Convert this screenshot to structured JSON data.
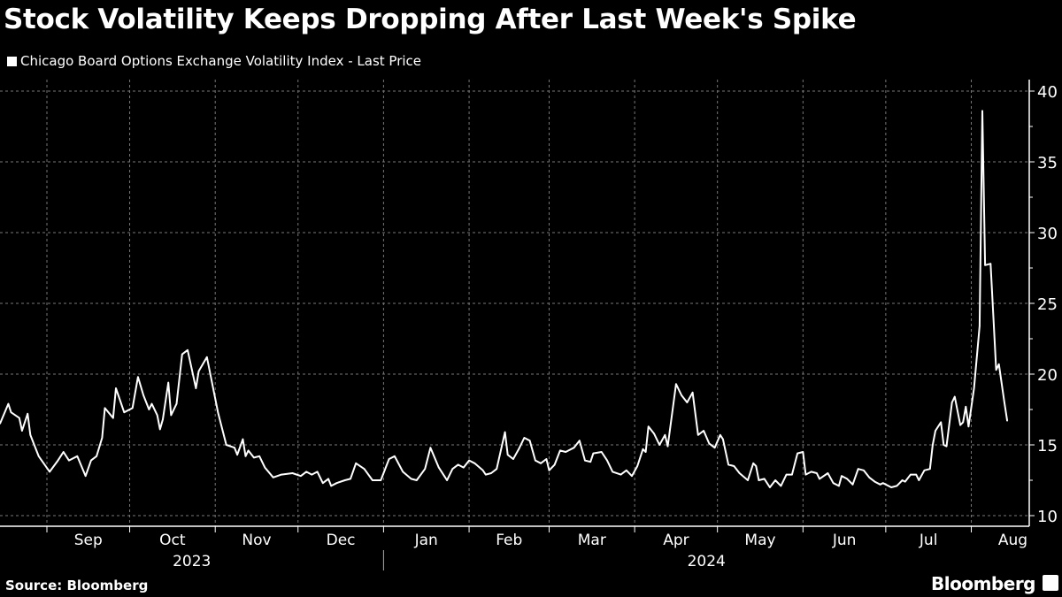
{
  "chart_data": {
    "type": "line",
    "title": "Stock Volatility Keeps Dropping After Last Week's Spike",
    "legend": [
      "Chicago Board Options Exchange Volatility Index - Last Price"
    ],
    "legend_placement": "top-left",
    "ylim": [
      10,
      41
    ],
    "yticks": [
      10,
      15,
      20,
      25,
      30,
      35,
      40
    ],
    "y_axis_side": "right",
    "xlim": [
      "2023-08-15",
      "2024-08-22"
    ],
    "grid": true,
    "month_ticks": [
      {
        "label": "Sep",
        "date": "2023-09-01"
      },
      {
        "label": "Oct",
        "date": "2023-10-01"
      },
      {
        "label": "Nov",
        "date": "2023-11-01"
      },
      {
        "label": "Dec",
        "date": "2023-12-01"
      },
      {
        "label": "Jan",
        "date": "2024-01-01"
      },
      {
        "label": "Feb",
        "date": "2024-02-01"
      },
      {
        "label": "Mar",
        "date": "2024-03-01"
      },
      {
        "label": "Apr",
        "date": "2024-04-01"
      },
      {
        "label": "May",
        "date": "2024-05-01"
      },
      {
        "label": "Jun",
        "date": "2024-06-01"
      },
      {
        "label": "Jul",
        "date": "2024-07-01"
      },
      {
        "label": "Aug",
        "date": "2024-08-01"
      }
    ],
    "year_labels": [
      "2023",
      "2024"
    ],
    "color": "#ffffff",
    "series": [
      {
        "name": "Chicago Board Options Exchange Volatility Index - Last Price",
        "points": [
          [
            "2023-08-15",
            16.5
          ],
          [
            "2023-08-18",
            17.9
          ],
          [
            "2023-08-19",
            17.3
          ],
          [
            "2023-08-22",
            16.9
          ],
          [
            "2023-08-23",
            16.0
          ],
          [
            "2023-08-25",
            17.2
          ],
          [
            "2023-08-26",
            15.7
          ],
          [
            "2023-08-29",
            14.2
          ],
          [
            "2023-09-02",
            13.1
          ],
          [
            "2023-09-05",
            13.9
          ],
          [
            "2023-09-07",
            14.5
          ],
          [
            "2023-09-09",
            13.9
          ],
          [
            "2023-09-12",
            14.2
          ],
          [
            "2023-09-15",
            12.8
          ],
          [
            "2023-09-17",
            13.9
          ],
          [
            "2023-09-19",
            14.2
          ],
          [
            "2023-09-21",
            15.5
          ],
          [
            "2023-09-22",
            17.6
          ],
          [
            "2023-09-25",
            16.9
          ],
          [
            "2023-09-26",
            19.0
          ],
          [
            "2023-09-29",
            17.3
          ],
          [
            "2023-10-02",
            17.6
          ],
          [
            "2023-10-04",
            19.8
          ],
          [
            "2023-10-06",
            18.5
          ],
          [
            "2023-10-08",
            17.5
          ],
          [
            "2023-10-09",
            17.9
          ],
          [
            "2023-10-11",
            17.1
          ],
          [
            "2023-10-12",
            16.1
          ],
          [
            "2023-10-13",
            16.8
          ],
          [
            "2023-10-15",
            19.4
          ],
          [
            "2023-10-16",
            17.1
          ],
          [
            "2023-10-18",
            17.9
          ],
          [
            "2023-10-20",
            21.4
          ],
          [
            "2023-10-22",
            21.7
          ],
          [
            "2023-10-25",
            19.0
          ],
          [
            "2023-10-26",
            20.2
          ],
          [
            "2023-10-29",
            21.2
          ],
          [
            "2023-11-02",
            17.3
          ],
          [
            "2023-11-05",
            15.0
          ],
          [
            "2023-11-08",
            14.8
          ],
          [
            "2023-11-09",
            14.3
          ],
          [
            "2023-11-11",
            15.4
          ],
          [
            "2023-11-12",
            14.2
          ],
          [
            "2023-11-13",
            14.6
          ],
          [
            "2023-11-15",
            14.1
          ],
          [
            "2023-11-17",
            14.2
          ],
          [
            "2023-11-19",
            13.4
          ],
          [
            "2023-11-22",
            12.7
          ],
          [
            "2023-11-25",
            12.9
          ],
          [
            "2023-11-29",
            13.0
          ],
          [
            "2023-12-02",
            12.8
          ],
          [
            "2023-12-04",
            13.1
          ],
          [
            "2023-12-06",
            12.9
          ],
          [
            "2023-12-08",
            13.1
          ],
          [
            "2023-12-10",
            12.3
          ],
          [
            "2023-12-12",
            12.6
          ],
          [
            "2023-12-13",
            12.1
          ],
          [
            "2023-12-15",
            12.3
          ],
          [
            "2023-12-18",
            12.5
          ],
          [
            "2023-12-20",
            12.6
          ],
          [
            "2023-12-22",
            13.7
          ],
          [
            "2023-12-25",
            13.3
          ],
          [
            "2023-12-28",
            12.5
          ],
          [
            "2023-12-31",
            12.5
          ],
          [
            "2024-01-03",
            14.0
          ],
          [
            "2024-01-05",
            14.2
          ],
          [
            "2024-01-08",
            13.1
          ],
          [
            "2024-01-11",
            12.6
          ],
          [
            "2024-01-13",
            12.5
          ],
          [
            "2024-01-16",
            13.3
          ],
          [
            "2024-01-18",
            14.8
          ],
          [
            "2024-01-21",
            13.4
          ],
          [
            "2024-01-23",
            12.8
          ],
          [
            "2024-01-24",
            12.5
          ],
          [
            "2024-01-26",
            13.3
          ],
          [
            "2024-01-28",
            13.6
          ],
          [
            "2024-01-30",
            13.4
          ],
          [
            "2024-02-01",
            13.9
          ],
          [
            "2024-02-03",
            13.7
          ],
          [
            "2024-02-06",
            13.2
          ],
          [
            "2024-02-07",
            12.9
          ],
          [
            "2024-02-09",
            13.0
          ],
          [
            "2024-02-11",
            13.3
          ],
          [
            "2024-02-14",
            15.9
          ],
          [
            "2024-02-15",
            14.3
          ],
          [
            "2024-02-17",
            14.0
          ],
          [
            "2024-02-19",
            14.7
          ],
          [
            "2024-02-21",
            15.5
          ],
          [
            "2024-02-23",
            15.3
          ],
          [
            "2024-02-25",
            13.9
          ],
          [
            "2024-02-27",
            13.7
          ],
          [
            "2024-02-29",
            14.0
          ],
          [
            "2024-03-01",
            13.2
          ],
          [
            "2024-03-03",
            13.6
          ],
          [
            "2024-03-05",
            14.6
          ],
          [
            "2024-03-07",
            14.5
          ],
          [
            "2024-03-10",
            14.8
          ],
          [
            "2024-03-12",
            15.3
          ],
          [
            "2024-03-14",
            13.9
          ],
          [
            "2024-03-16",
            13.8
          ],
          [
            "2024-03-17",
            14.4
          ],
          [
            "2024-03-20",
            14.5
          ],
          [
            "2024-03-22",
            13.9
          ],
          [
            "2024-03-24",
            13.1
          ],
          [
            "2024-03-27",
            12.9
          ],
          [
            "2024-03-29",
            13.2
          ],
          [
            "2024-03-31",
            12.8
          ],
          [
            "2024-04-02",
            13.5
          ],
          [
            "2024-04-04",
            14.7
          ],
          [
            "2024-04-05",
            14.5
          ],
          [
            "2024-04-06",
            16.3
          ],
          [
            "2024-04-08",
            15.8
          ],
          [
            "2024-04-10",
            15.0
          ],
          [
            "2024-04-12",
            15.7
          ],
          [
            "2024-04-13",
            14.9
          ],
          [
            "2024-04-16",
            19.3
          ],
          [
            "2024-04-18",
            18.5
          ],
          [
            "2024-04-20",
            18.0
          ],
          [
            "2024-04-22",
            18.7
          ],
          [
            "2024-04-24",
            15.7
          ],
          [
            "2024-04-26",
            16.0
          ],
          [
            "2024-04-28",
            15.1
          ],
          [
            "2024-04-30",
            14.8
          ],
          [
            "2024-05-02",
            15.7
          ],
          [
            "2024-05-03",
            15.4
          ],
          [
            "2024-05-05",
            13.6
          ],
          [
            "2024-05-07",
            13.5
          ],
          [
            "2024-05-09",
            13.0
          ],
          [
            "2024-05-12",
            12.5
          ],
          [
            "2024-05-14",
            13.7
          ],
          [
            "2024-05-15",
            13.5
          ],
          [
            "2024-05-16",
            12.5
          ],
          [
            "2024-05-18",
            12.6
          ],
          [
            "2024-05-20",
            12.0
          ],
          [
            "2024-05-22",
            12.5
          ],
          [
            "2024-05-24",
            12.1
          ],
          [
            "2024-05-26",
            12.9
          ],
          [
            "2024-05-28",
            12.9
          ],
          [
            "2024-05-30",
            14.4
          ],
          [
            "2024-06-01",
            14.5
          ],
          [
            "2024-06-02",
            12.9
          ],
          [
            "2024-06-04",
            13.1
          ],
          [
            "2024-06-06",
            13.0
          ],
          [
            "2024-06-07",
            12.6
          ],
          [
            "2024-06-10",
            13.0
          ],
          [
            "2024-06-12",
            12.3
          ],
          [
            "2024-06-14",
            12.1
          ],
          [
            "2024-06-15",
            12.8
          ],
          [
            "2024-06-17",
            12.6
          ],
          [
            "2024-06-19",
            12.2
          ],
          [
            "2024-06-21",
            13.3
          ],
          [
            "2024-06-23",
            13.2
          ],
          [
            "2024-06-25",
            12.7
          ],
          [
            "2024-06-27",
            12.4
          ],
          [
            "2024-06-29",
            12.2
          ],
          [
            "2024-06-30",
            12.3
          ],
          [
            "2024-07-03",
            12.0
          ],
          [
            "2024-07-05",
            12.1
          ],
          [
            "2024-07-07",
            12.5
          ],
          [
            "2024-07-08",
            12.4
          ],
          [
            "2024-07-10",
            12.9
          ],
          [
            "2024-07-12",
            12.9
          ],
          [
            "2024-07-13",
            12.5
          ],
          [
            "2024-07-15",
            13.2
          ],
          [
            "2024-07-17",
            13.3
          ],
          [
            "2024-07-18",
            15.0
          ],
          [
            "2024-07-19",
            16.0
          ],
          [
            "2024-07-21",
            16.6
          ],
          [
            "2024-07-22",
            15.0
          ],
          [
            "2024-07-23",
            14.9
          ],
          [
            "2024-07-25",
            18.0
          ],
          [
            "2024-07-26",
            18.4
          ],
          [
            "2024-07-28",
            16.4
          ],
          [
            "2024-07-29",
            16.6
          ],
          [
            "2024-07-30",
            17.7
          ],
          [
            "2024-07-31",
            16.3
          ],
          [
            "2024-08-02",
            19.0
          ],
          [
            "2024-08-04",
            23.4
          ],
          [
            "2024-08-05",
            38.6
          ],
          [
            "2024-08-06",
            27.7
          ],
          [
            "2024-08-08",
            27.8
          ],
          [
            "2024-08-09",
            24.0
          ],
          [
            "2024-08-10",
            20.3
          ],
          [
            "2024-08-11",
            20.7
          ],
          [
            "2024-08-13",
            18.0
          ],
          [
            "2024-08-14",
            16.7
          ]
        ]
      }
    ]
  },
  "footer": {
    "source": "Source: Bloomberg",
    "logo": "Bloomberg"
  }
}
